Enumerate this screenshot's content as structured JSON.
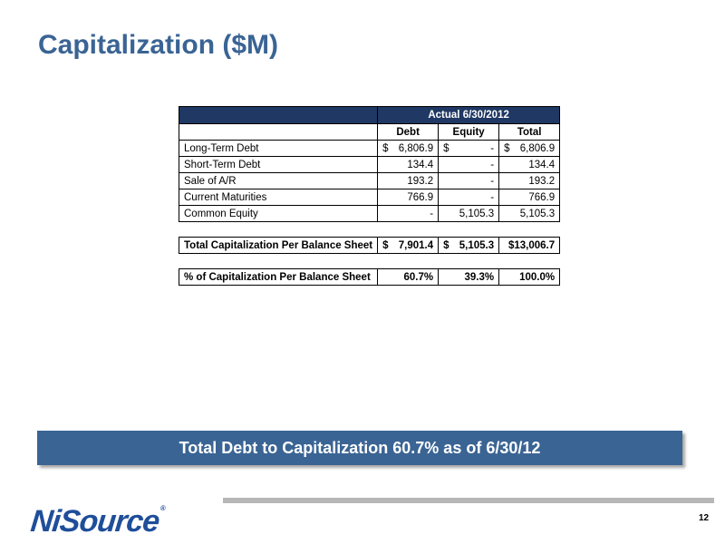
{
  "slide": {
    "title": "Capitalization ($M)",
    "callout": "Total Debt to Capitalization 60.7% as of 6/30/12",
    "page_number": "12",
    "logo_text": "NiSource",
    "logo_mark": "®"
  },
  "table": {
    "banner": "Actual 6/30/2012",
    "columns": [
      "Debt",
      "Equity",
      "Total"
    ],
    "rows": [
      {
        "label": "Long-Term Debt",
        "debt_cur": "$",
        "debt": "6,806.9",
        "equity_cur": "$",
        "equity": "-",
        "total_cur": "$",
        "total": "6,806.9"
      },
      {
        "label": "Short-Term Debt",
        "debt": "134.4",
        "equity": "-",
        "total": "134.4"
      },
      {
        "label": "Sale of A/R",
        "debt": "193.2",
        "equity": "-",
        "total": "193.2"
      },
      {
        "label": "Current Maturities",
        "debt": "766.9",
        "equity": "-",
        "total": "766.9"
      },
      {
        "label": "Common Equity",
        "debt": "-",
        "equity": "5,105.3",
        "total": "5,105.3"
      }
    ],
    "total_row": {
      "label": "Total Capitalization Per Balance Sheet",
      "debt_cur": "$",
      "debt": "7,901.4",
      "equity_cur": "$",
      "equity": "5,105.3",
      "total": "$13,006.7"
    },
    "pct_row": {
      "label": "% of Capitalization Per Balance Sheet",
      "debt": "60.7%",
      "equity": "39.3%",
      "total": "100.0%"
    }
  },
  "colors": {
    "title": "#3a6494",
    "banner": "#1f3864",
    "callout": "#3a6494",
    "logo": "#1f4e9a"
  }
}
